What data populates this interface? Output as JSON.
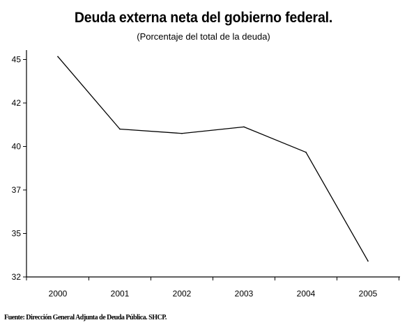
{
  "chart_data": {
    "type": "line",
    "title": "Deuda externa neta del gobierno federal.",
    "subtitle": "(Porcentaje del total de la deuda)",
    "xlabel": "",
    "ylabel": "",
    "categories": [
      "2000",
      "2001",
      "2002",
      "2003",
      "2004",
      "2005"
    ],
    "series": [
      {
        "values": [
          45.2,
          40.8,
          40.6,
          40.9,
          39.6,
          33.1
        ]
      }
    ],
    "ylim": [
      32,
      45.5
    ],
    "yticks": [
      32,
      35,
      37,
      40,
      42,
      45
    ],
    "ytick_labels": [
      "32",
      "35",
      "37",
      "40",
      "42",
      "45"
    ],
    "grid": false,
    "line_color": "#000000"
  },
  "source_note": "Fuente: Dirección General Adjunta de Deuda Pública. SHCP."
}
